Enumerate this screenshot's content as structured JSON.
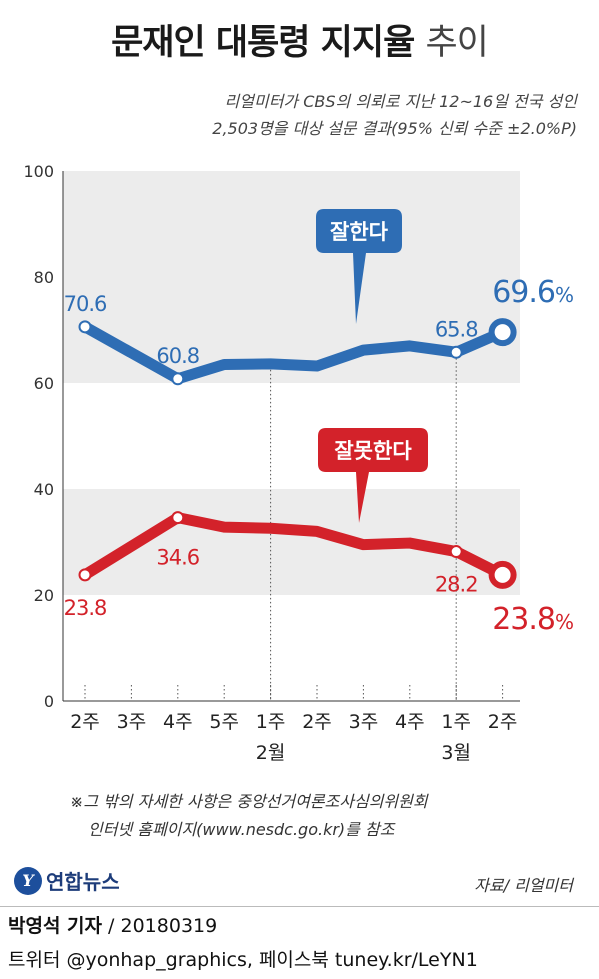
{
  "header": {
    "title_main": "문재인 대통령 지지율",
    "title_suffix": "추이",
    "subtitle_line1": "리얼미터가 CBS의 의뢰로 지난 12~16일 전국 성인",
    "subtitle_line2": "2,503명을 대상 설문 결과(95% 신뢰 수준 ±2.0%P)"
  },
  "chart_data": {
    "type": "line",
    "categories": [
      "2주",
      "3주",
      "4주",
      "5주",
      "1주",
      "2주",
      "3주",
      "4주",
      "1주",
      "2주"
    ],
    "month_labels": [
      {
        "index": 4,
        "label": "2월"
      },
      {
        "index": 8,
        "label": "3월"
      }
    ],
    "ylim": [
      0,
      100
    ],
    "yticks": [
      0,
      20,
      40,
      60,
      80,
      100
    ],
    "grid": true,
    "series": [
      {
        "name": "잘한다",
        "color": "#2e6db4",
        "values": [
          70.6,
          null,
          60.8,
          63.5,
          63.6,
          63.2,
          66.2,
          67.0,
          65.8,
          69.6
        ],
        "labels": [
          {
            "index": 0,
            "text": "70.6"
          },
          {
            "index": 2,
            "text": "60.8"
          },
          {
            "index": 8,
            "text": "65.8"
          },
          {
            "index": 9,
            "text": "69.6%"
          }
        ]
      },
      {
        "name": "잘못한다",
        "color": "#d3222a",
        "values": [
          23.8,
          null,
          34.6,
          32.8,
          32.6,
          32.0,
          29.5,
          29.8,
          28.2,
          23.8
        ],
        "labels": [
          {
            "index": 0,
            "text": "23.8"
          },
          {
            "index": 2,
            "text": "34.6"
          },
          {
            "index": 8,
            "text": "28.2"
          },
          {
            "index": 9,
            "text": "23.8%"
          }
        ]
      }
    ]
  },
  "footnote": {
    "line1": "※그 밖의 자세한 사항은 중앙선거여론조사심의위원회",
    "line2": "인터넷 홈페이지(www.nesdc.go.kr)를 참조"
  },
  "footer": {
    "logo_mark": "Y",
    "logo_text": "연합뉴스",
    "source": "자료/ 리얼미터",
    "reporter": "박영석 기자",
    "date": " / 20180319",
    "social": "트위터 @yonhap_graphics, 페이스북 tuney.kr/LeYN1"
  }
}
